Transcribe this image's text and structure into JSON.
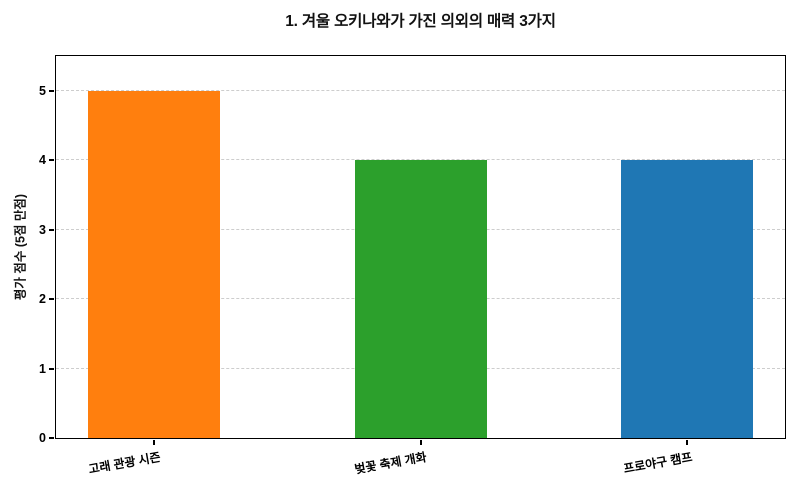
{
  "chart_data": {
    "type": "bar",
    "title": "1. 겨울 오키나와가 가진 의외의 매력 3가지",
    "categories": [
      "고래 관광 시즌",
      "벚꽃 축제 개화",
      "프로야구 캠프"
    ],
    "values": [
      5,
      4,
      4
    ],
    "colors": [
      "#ff7f0e",
      "#2ca02c",
      "#1f77b4"
    ],
    "xlabel": "",
    "ylabel": "평가 점수 (5점 만점)",
    "ylim": [
      0,
      5.5
    ],
    "yticks": [
      0,
      1,
      2,
      3,
      4,
      5
    ],
    "grid": "horizontal-dashed",
    "gridline_color": "#cdcdcd",
    "legend": "none",
    "background": "#ffffff",
    "xtick_label_rotation_deg": 10
  }
}
